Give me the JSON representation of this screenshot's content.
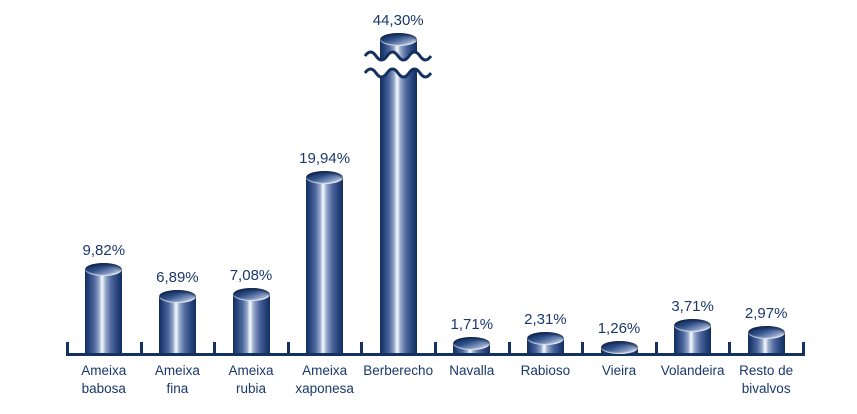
{
  "chart_data": {
    "type": "bar",
    "style": "3d-cylinder",
    "orientation": "vertical",
    "title": "",
    "xlabel": "",
    "ylabel": "",
    "value_axis_visible": false,
    "grid": false,
    "legend": "none",
    "decimal_separator": ",",
    "categories": [
      "Ameixa babosa",
      "Ameixa fina",
      "Ameixa rubia",
      "Ameixa xaponesa",
      "Berberecho",
      "Navalla",
      "Rabioso",
      "Vieira",
      "Volandeira",
      "Resto de bivalvos"
    ],
    "category_label_lines": [
      [
        "Ameixa",
        "babosa"
      ],
      [
        "Ameixa",
        "fina"
      ],
      [
        "Ameixa",
        "rubia"
      ],
      [
        "Ameixa",
        "xaponesa"
      ],
      [
        "Berberecho"
      ],
      [
        "Navalla"
      ],
      [
        "Rabioso"
      ],
      [
        "Vieira"
      ],
      [
        "Volandeira"
      ],
      [
        "Resto de",
        "bivalvos"
      ]
    ],
    "values": [
      9.82,
      6.89,
      7.08,
      19.94,
      44.3,
      1.71,
      2.31,
      1.26,
      3.71,
      2.97
    ],
    "value_labels": [
      "9,82%",
      "6,89%",
      "7,08%",
      "19,94%",
      "44,30%",
      "1,71%",
      "2,31%",
      "1,26%",
      "3,71%",
      "2,97%"
    ],
    "axis_break": {
      "category": "Berberecho",
      "value": 44.3,
      "note": "bar truncated with double wavy break marks"
    },
    "colors": {
      "bar_dark_navy": "#14315f",
      "bar_mid_blue": "#51699f",
      "bar_highlight": "#f9fbfe",
      "axis": "#14315f",
      "text": "#1a386c",
      "background": "#ffffff"
    }
  }
}
